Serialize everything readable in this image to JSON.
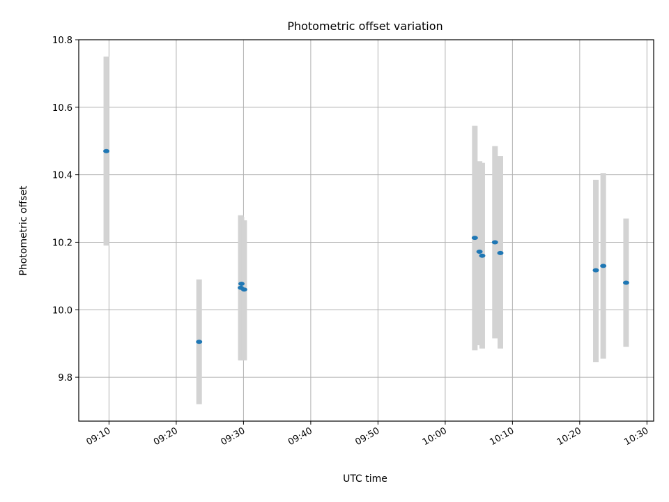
{
  "chart_data": {
    "type": "scatter",
    "title": "Photometric offset variation",
    "xlabel": "UTC time",
    "ylabel": "Photometric offset",
    "xlim": [
      "09:05:30",
      "10:31:00"
    ],
    "ylim": [
      9.67,
      10.8
    ],
    "x_ticks": [
      "09:10",
      "09:20",
      "09:30",
      "09:40",
      "09:50",
      "10:00",
      "10:10",
      "10:20",
      "10:30"
    ],
    "y_ticks": [
      "9.8",
      "10.0",
      "10.2",
      "10.4",
      "10.6",
      "10.8"
    ],
    "grid": true,
    "legend": "none",
    "marker_color": "#1f77b4",
    "errorbar_color": "#d3d3d3",
    "points": [
      {
        "x": "09:09:36",
        "y": 10.47,
        "ylow": 10.19,
        "yhigh": 10.75
      },
      {
        "x": "09:23:24",
        "y": 9.905,
        "ylow": 9.72,
        "yhigh": 10.09
      },
      {
        "x": "09:29:36",
        "y": 10.065,
        "ylow": 9.85,
        "yhigh": 10.28
      },
      {
        "x": "09:29:42",
        "y": 10.077,
        "ylow": 9.85,
        "yhigh": 10.275
      },
      {
        "x": "09:30:06",
        "y": 10.06,
        "ylow": 9.85,
        "yhigh": 10.265
      },
      {
        "x": "10:04:24",
        "y": 10.213,
        "ylow": 9.88,
        "yhigh": 10.545
      },
      {
        "x": "10:05:06",
        "y": 10.172,
        "ylow": 9.895,
        "yhigh": 10.44
      },
      {
        "x": "10:05:30",
        "y": 10.16,
        "ylow": 9.885,
        "yhigh": 10.435
      },
      {
        "x": "10:07:24",
        "y": 10.2,
        "ylow": 9.915,
        "yhigh": 10.485
      },
      {
        "x": "10:08:12",
        "y": 10.168,
        "ylow": 9.885,
        "yhigh": 10.455
      },
      {
        "x": "10:22:24",
        "y": 10.117,
        "ylow": 9.845,
        "yhigh": 10.385
      },
      {
        "x": "10:23:30",
        "y": 10.13,
        "ylow": 9.855,
        "yhigh": 10.405
      },
      {
        "x": "10:26:54",
        "y": 10.08,
        "ylow": 9.89,
        "yhigh": 10.27
      }
    ]
  }
}
